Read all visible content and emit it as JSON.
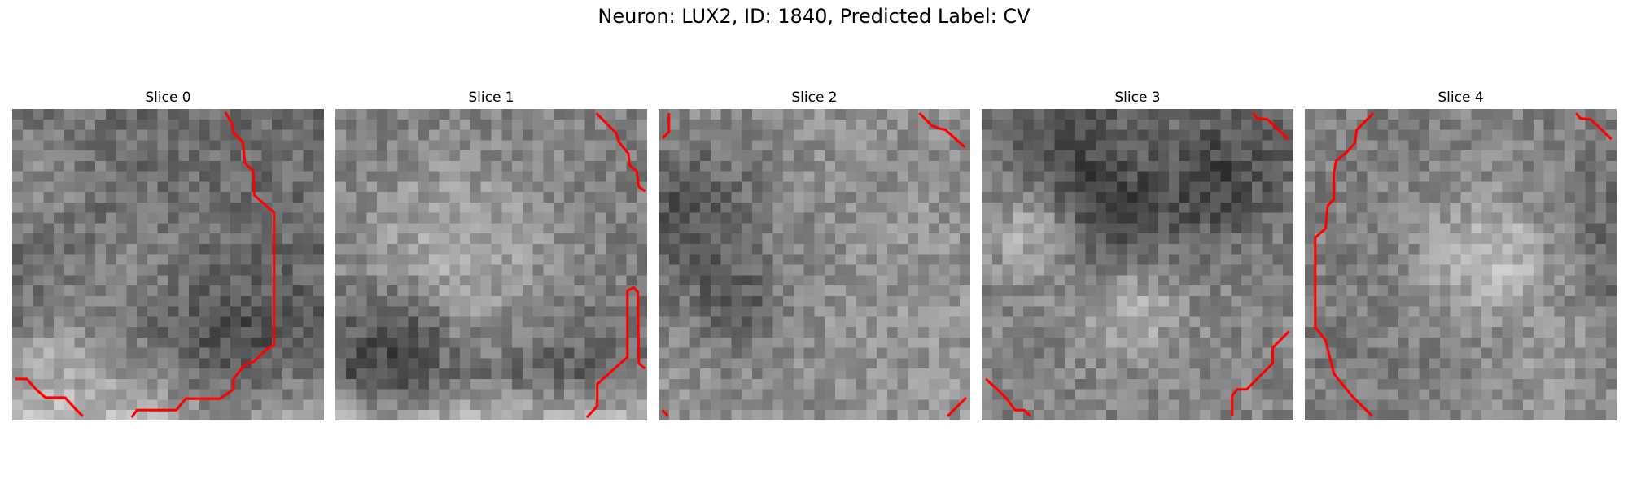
{
  "figure": {
    "title": "Neuron: LUX2, ID: 1840, Predicted Label: CV",
    "panels": [
      {
        "title": "Slice 0",
        "seed": 11,
        "base": 0.42,
        "icon": "grayscale-image-slice-icon",
        "contour": "red"
      },
      {
        "title": "Slice 1",
        "seed": 23,
        "base": 0.5,
        "icon": "grayscale-image-slice-icon",
        "contour": "red"
      },
      {
        "title": "Slice 2",
        "seed": 37,
        "base": 0.58,
        "icon": "grayscale-image-slice-icon",
        "contour": "red"
      },
      {
        "title": "Slice 3",
        "seed": 53,
        "base": 0.52,
        "icon": "grayscale-image-slice-icon",
        "contour": "red"
      },
      {
        "title": "Slice 4",
        "seed": 71,
        "base": 0.5,
        "icon": "grayscale-image-slice-icon",
        "contour": "red"
      }
    ],
    "contour_color": "#ff0000"
  }
}
